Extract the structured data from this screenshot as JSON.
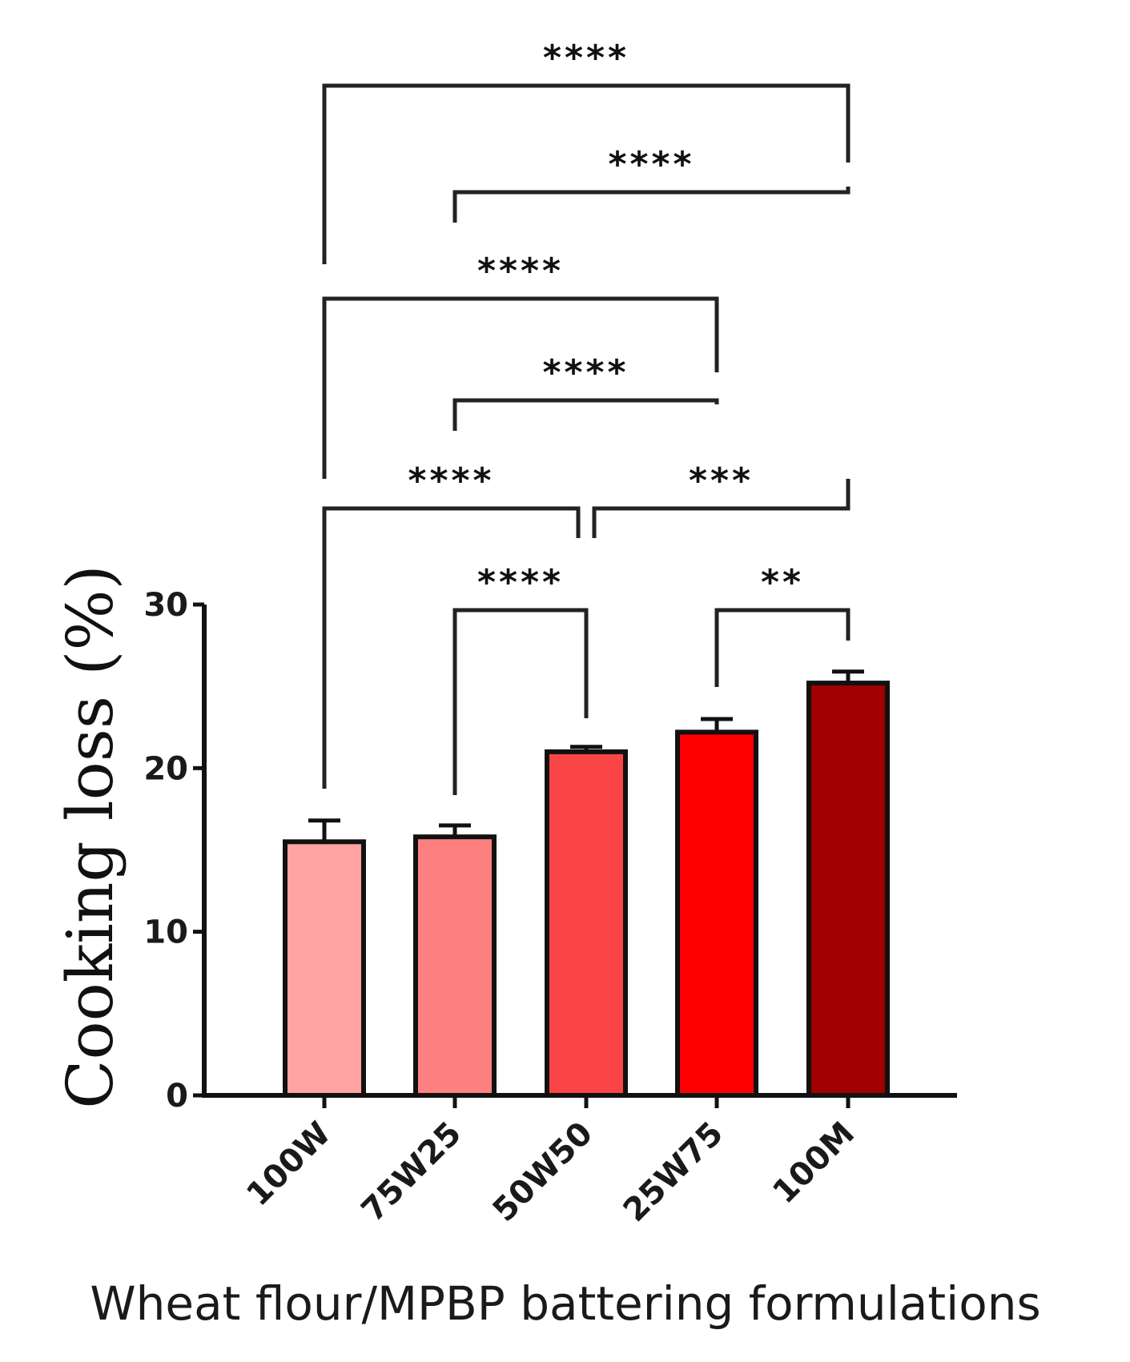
{
  "chart_data": {
    "type": "bar",
    "categories": [
      "100W",
      "75W25",
      "50W50",
      "25W75",
      "100M"
    ],
    "values": [
      15.5,
      15.8,
      21.0,
      22.2,
      25.2
    ],
    "errors": [
      1.3,
      0.7,
      0.3,
      0.8,
      0.7
    ],
    "colors": [
      "#ffa3a3",
      "#ff8080",
      "#f94545",
      "#ff0000",
      "#a00000"
    ],
    "title": "",
    "xlabel": "Wheat flour/MPBP battering formulations",
    "ylabel": "Cooking loss (%)",
    "ylim": [
      0,
      30
    ],
    "yticks": [
      "0",
      "10",
      "20",
      "30"
    ],
    "significance": [
      {
        "from": "100W",
        "to": "100M",
        "label": "****"
      },
      {
        "from": "75W25",
        "to": "100M",
        "label": "****"
      },
      {
        "from": "100W",
        "to": "25W75",
        "label": "****"
      },
      {
        "from": "75W25",
        "to": "25W75",
        "label": "****"
      },
      {
        "from": "100W",
        "to": "50W50",
        "label": "****"
      },
      {
        "from": "50W50",
        "to": "100M",
        "label": "***"
      },
      {
        "from": "75W25",
        "to": "50W50",
        "label": "****"
      },
      {
        "from": "25W75",
        "to": "100M",
        "label": "**"
      }
    ]
  }
}
